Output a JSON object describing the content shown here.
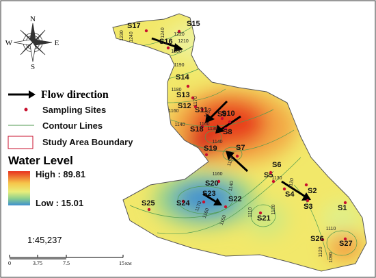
{
  "compass": {
    "n": "N",
    "s": "S",
    "e": "E",
    "w": "W"
  },
  "legend": {
    "flow": "Flow direction",
    "sites": "Sampling Sites",
    "contours": "Contour Lines",
    "boundary": "Study Area Boundary",
    "title": "Water Level",
    "high": "High : 89.81",
    "low": "Low : 15.01"
  },
  "scale": {
    "ratio": "1:45,237",
    "ticks": [
      "0",
      "3.75",
      "7.5",
      "15"
    ],
    "unit": "KM"
  },
  "sites": [
    "S1",
    "S2",
    "S3",
    "S4",
    "S5",
    "S6",
    "S7",
    "S8",
    "S9",
    "S10",
    "S11",
    "S12",
    "S13",
    "S14",
    "S15",
    "S16",
    "S17",
    "S18",
    "S19",
    "S20",
    "S21",
    "S22",
    "S23",
    "S24",
    "S25",
    "S26",
    "S27"
  ],
  "contour_labels": [
    "1230",
    "1240",
    "1240",
    "1220",
    "1210",
    "1200",
    "1190",
    "1180",
    "1170",
    "1160",
    "1150",
    "1160",
    "1130",
    "1140",
    "1140",
    "1150",
    "1160",
    "1140",
    "1130",
    "1120",
    "1170",
    "1160",
    "1150",
    "1110",
    "1120",
    "1110",
    "1120",
    "1090"
  ]
}
